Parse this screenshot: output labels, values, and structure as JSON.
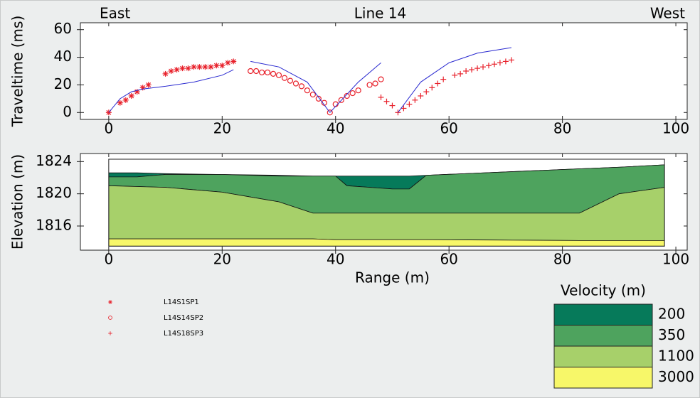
{
  "chart_data": [
    {
      "type": "scatter",
      "title": "Line 14",
      "annotations": [
        "East",
        "West"
      ],
      "ylabel": "Traveltime (ms)",
      "xlim": [
        -5,
        102
      ],
      "ylim": [
        -5,
        65
      ],
      "xticks": [
        0,
        20,
        40,
        60,
        80,
        100
      ],
      "yticks": [
        0,
        20,
        40,
        60
      ],
      "legend": "lower-left",
      "series": [
        {
          "name": "L14S1SP1",
          "color": "#e8202a",
          "marker": "star",
          "x": [
            0,
            2,
            3,
            4,
            5,
            6,
            7,
            10,
            11,
            12,
            13,
            14,
            15,
            16,
            17,
            18,
            19,
            20,
            21,
            22
          ],
          "values": [
            0,
            7,
            9,
            12,
            15,
            18,
            20,
            28,
            30,
            31,
            32,
            32,
            33,
            33,
            33,
            33,
            34,
            34,
            36,
            37
          ]
        },
        {
          "name": "L14S14SP2",
          "color": "#e8202a",
          "marker": "circle",
          "x": [
            25,
            26,
            27,
            28,
            29,
            30,
            31,
            32,
            33,
            34,
            35,
            36,
            37,
            38,
            39,
            40,
            41,
            42,
            43,
            44,
            46,
            47,
            48
          ],
          "values": [
            30,
            30,
            29,
            29,
            28,
            27,
            25,
            23,
            21,
            19,
            16,
            13,
            10,
            7,
            0,
            6,
            9,
            12,
            14,
            16,
            20,
            21,
            24
          ]
        },
        {
          "name": "L14S18SP3",
          "color": "#e8202a",
          "marker": "plus",
          "x": [
            48,
            49,
            50,
            51,
            52,
            53,
            54,
            55,
            56,
            57,
            58,
            59,
            61,
            62,
            63,
            64,
            65,
            66,
            67,
            68,
            69,
            70,
            71
          ],
          "values": [
            11,
            8,
            5,
            0,
            3,
            6,
            9,
            12,
            15,
            18,
            21,
            24,
            27,
            28,
            30,
            31,
            32,
            33,
            34,
            35,
            36,
            37,
            38
          ]
        },
        {
          "color": "#2a2ad0",
          "style": "line",
          "x": [
            0,
            2,
            4,
            6,
            10,
            15,
            20,
            22
          ],
          "values": [
            0,
            10,
            15,
            17,
            19,
            22,
            27,
            31
          ]
        },
        {
          "color": "#2a2ad0",
          "style": "line",
          "x": [
            25,
            30,
            35,
            39
          ],
          "values": [
            37,
            33,
            22,
            0
          ]
        },
        {
          "color": "#2a2ad0",
          "style": "line",
          "x": [
            39,
            44,
            48
          ],
          "values": [
            0,
            22,
            36
          ]
        },
        {
          "color": "#2a2ad0",
          "style": "line",
          "x": [
            51,
            55,
            60,
            65,
            71
          ],
          "values": [
            0,
            22,
            36,
            43,
            47
          ]
        }
      ]
    },
    {
      "type": "area",
      "ylabel": "Elevation (m)",
      "xlabel": "Range (m)",
      "xlim": [
        -5,
        102
      ],
      "ylim": [
        1813,
        1825
      ],
      "xticks": [
        0,
        20,
        40,
        60,
        80,
        100
      ],
      "yticks": [
        1816,
        1820,
        1824
      ],
      "legend": "lower-right",
      "legend_title": "Velocity (m)",
      "x": [
        0,
        5,
        10,
        20,
        30,
        36,
        40,
        42,
        50,
        53,
        56,
        83,
        90,
        98
      ],
      "series": [
        {
          "name": "200",
          "color": "#067a5a",
          "values": [
            1822.6,
            1822.6,
            1822.5,
            1822.4,
            1822.3,
            1822.2,
            1822.2,
            1822.2,
            1822.2,
            1822.2,
            1822.3,
            1823.1,
            1823.3,
            1823.6
          ]
        },
        {
          "name": "350",
          "color": "#4ea35e",
          "values": [
            1822.1,
            1822.1,
            1822.4,
            1822.4,
            1822.2,
            1822.2,
            1822.2,
            1821.0,
            1820.6,
            1820.6,
            1822.3,
            1823.1,
            1823.3,
            1823.6
          ]
        },
        {
          "name": "1100",
          "color": "#a7d06a",
          "values": [
            1821.0,
            1820.9,
            1820.8,
            1820.2,
            1819.0,
            1817.6,
            1817.6,
            1817.6,
            1817.6,
            1817.6,
            1817.6,
            1817.6,
            1820.0,
            1820.8
          ]
        },
        {
          "name": "3000",
          "color": "#f7f769",
          "values": [
            1814.4,
            1814.4,
            1814.4,
            1814.4,
            1814.4,
            1814.4,
            1814.3,
            1814.3,
            1814.3,
            1814.3,
            1814.3,
            1814.2,
            1814.2,
            1814.2
          ]
        }
      ],
      "floor": [
        1813.5,
        1813.5,
        1813.5,
        1813.5,
        1813.5,
        1813.5,
        1813.5,
        1813.5,
        1813.5,
        1813.5,
        1813.5,
        1813.5,
        1813.5,
        1813.5
      ]
    }
  ]
}
